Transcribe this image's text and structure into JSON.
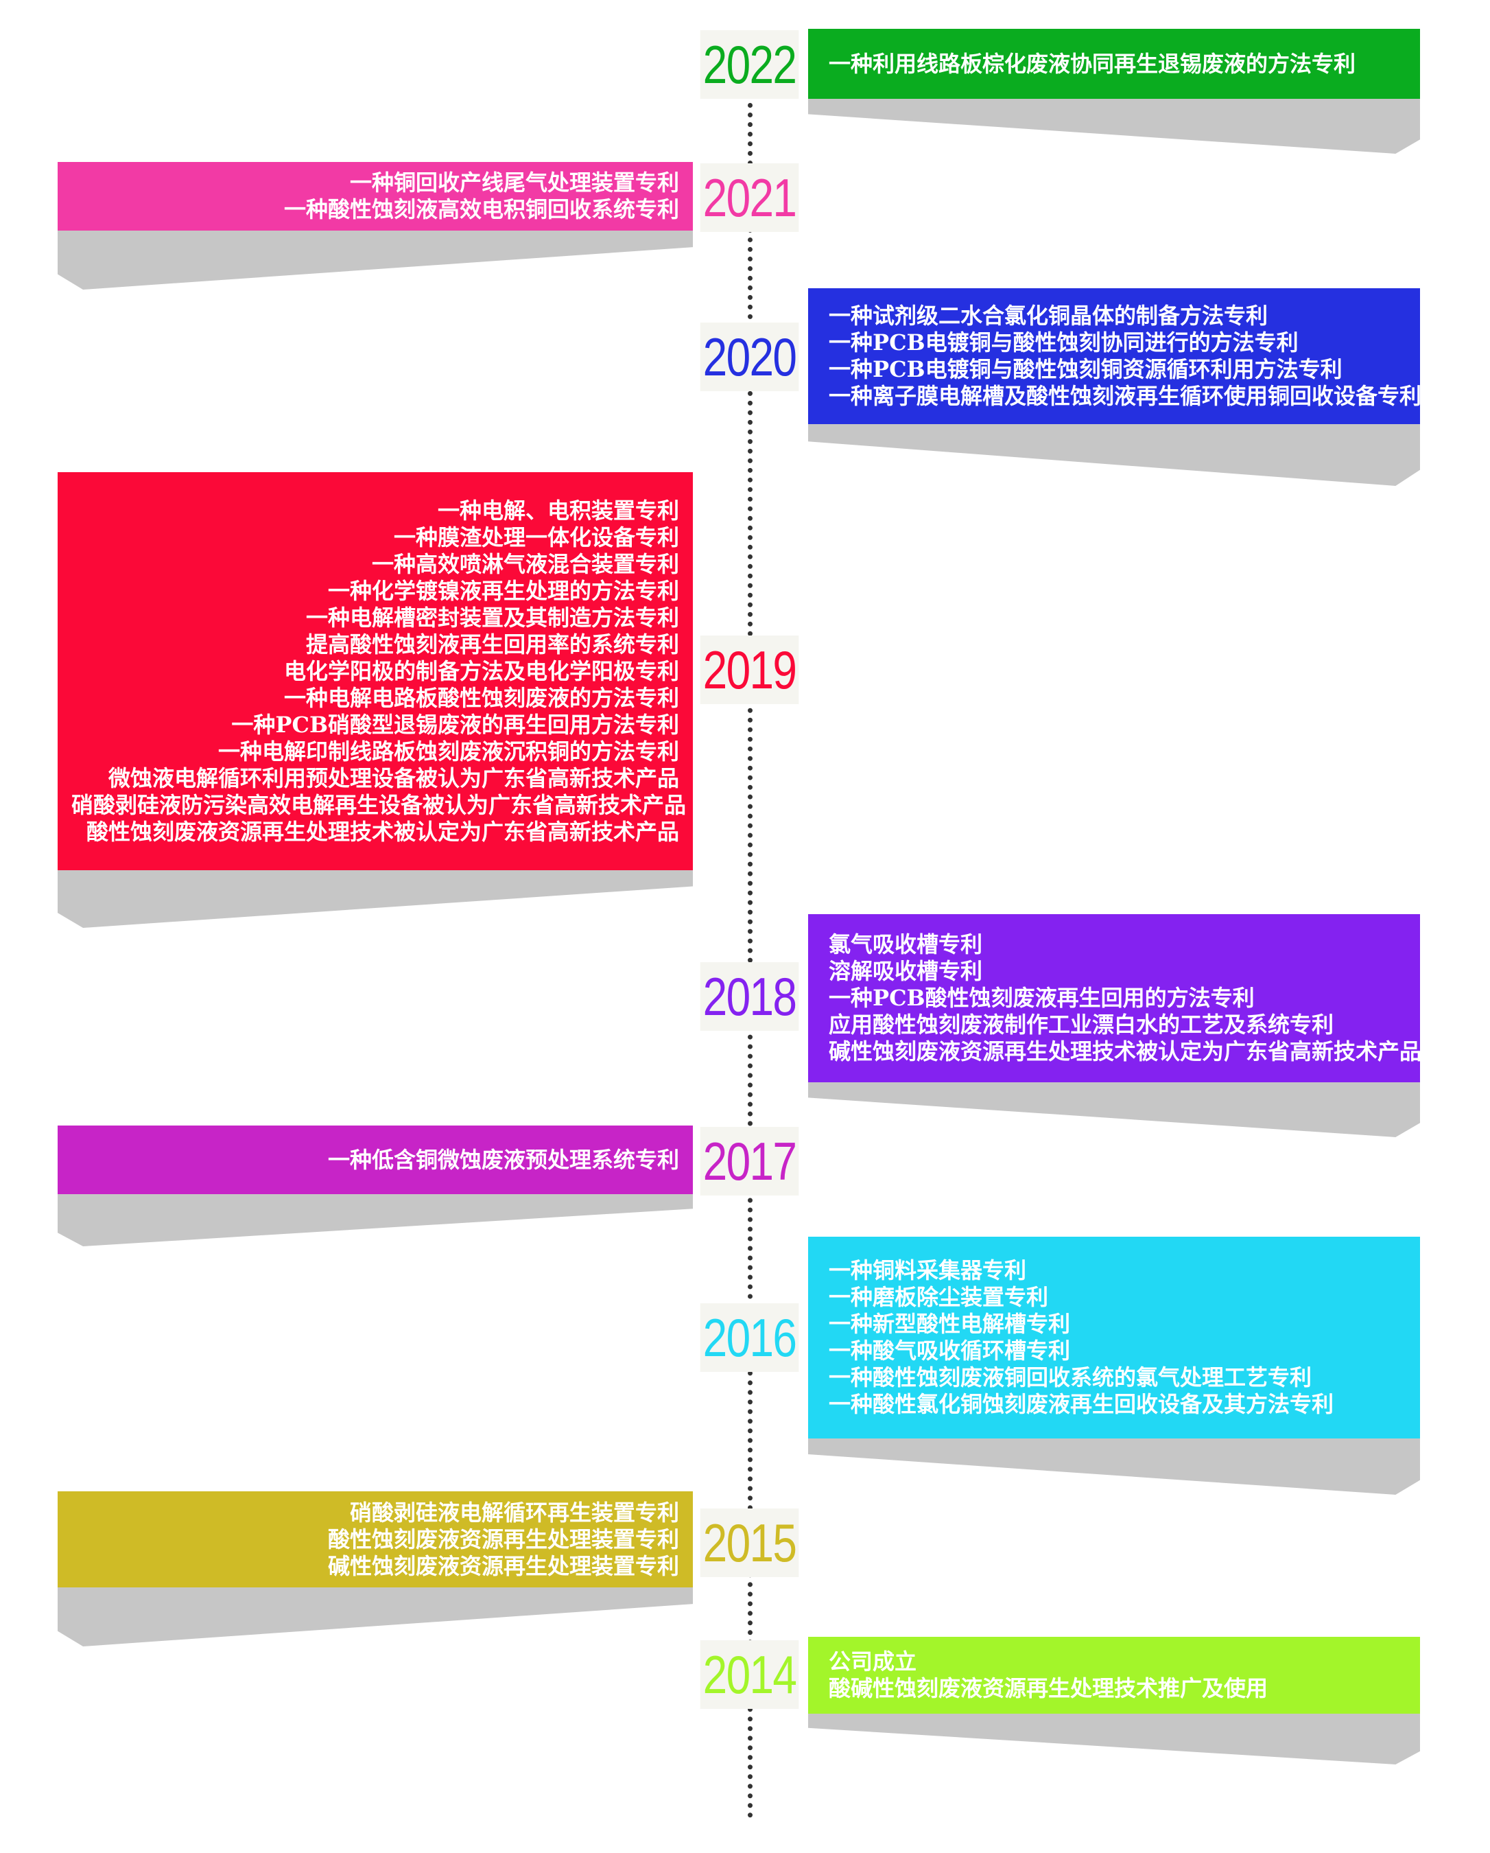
{
  "timeline": [
    {
      "year": "2022",
      "color": "#0aac1f",
      "side": "right",
      "items": [
        "一种利用线路板棕化废液协同再生退锡废液的方法专利"
      ]
    },
    {
      "year": "2021",
      "color": "#f23aa5",
      "side": "left",
      "items": [
        "一种铜回收产线尾气处理装置专利",
        "一种酸性蚀刻液高效电积铜回收系统专利"
      ]
    },
    {
      "year": "2020",
      "color": "#2530e0",
      "side": "right",
      "items": [
        "一种试剂级二水合氯化铜晶体的制备方法专利",
        "一种PCB电镀铜与酸性蚀刻协同进行的方法专利",
        "一种PCB电镀铜与酸性蚀刻铜资源循环利用方法专利",
        "一种离子膜电解槽及酸性蚀刻液再生循环使用铜回收设备专利"
      ]
    },
    {
      "year": "2019",
      "color": "#fb0938",
      "side": "left",
      "items": [
        "一种电解、电积装置专利",
        "一种膜渣处理一体化设备专利",
        "一种高效喷淋气液混合装置专利",
        "一种化学镀镍液再生处理的方法专利",
        "一种电解槽密封装置及其制造方法专利",
        "提高酸性蚀刻液再生回用率的系统专利",
        "电化学阳极的制备方法及电化学阳极专利",
        "一种电解电路板酸性蚀刻废液的方法专利",
        "一种PCB硝酸型退锡废液的再生回用方法专利",
        "一种电解印制线路板蚀刻废液沉积铜的方法专利",
        "微蚀液电解循环利用预处理设备被认为广东省高新技术产品",
        "硝酸剥硅液防污染高效电解再生设备被认为广东省高新技术产品",
        "酸性蚀刻废液资源再生处理技术被认定为广东省高新技术产品"
      ]
    },
    {
      "year": "2018",
      "color": "#8422f0",
      "side": "right",
      "items": [
        "氯气吸收槽专利",
        "溶解吸收槽专利",
        "一种PCB酸性蚀刻废液再生回用的方法专利",
        "应用酸性蚀刻废液制作工业漂白水的工艺及系统专利",
        "碱性蚀刻废液资源再生处理技术被认定为广东省高新技术产品"
      ]
    },
    {
      "year": "2017",
      "color": "#c724c7",
      "side": "left",
      "items": [
        "一种低含铜微蚀废液预处理系统专利"
      ]
    },
    {
      "year": "2016",
      "color": "#22d8f4",
      "side": "right",
      "items": [
        "一种铜料采集器专利",
        "一种磨板除尘装置专利",
        "一种新型酸性电解槽专利",
        "一种酸气吸收循环槽专利",
        "一种酸性蚀刻废液铜回收系统的氯气处理工艺专利",
        "一种酸性氯化铜蚀刻废液再生回收设备及其方法专利"
      ]
    },
    {
      "year": "2015",
      "color": "#cfbb26",
      "side": "left",
      "items": [
        "硝酸剥硅液电解循环再生装置专利",
        "酸性蚀刻废液资源再生处理装置专利",
        "碱性蚀刻废液资源再生处理装置专利"
      ]
    },
    {
      "year": "2014",
      "color": "#a3f52a",
      "side": "right",
      "items": [
        "公司成立",
        "酸碱性蚀刻废液资源再生处理技术推广及使用"
      ]
    }
  ]
}
